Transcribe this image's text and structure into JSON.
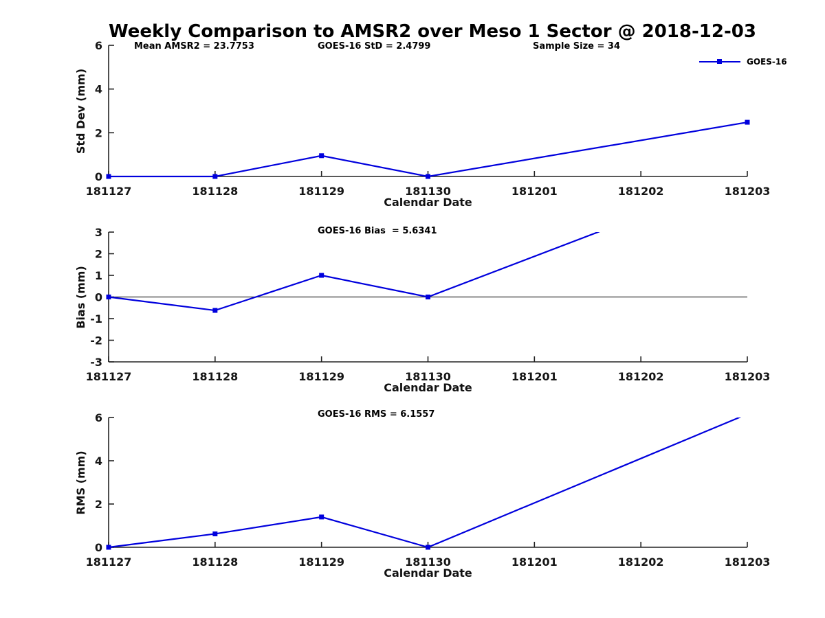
{
  "title": "Weekly Comparison to AMSR2 over Meso 1 Sector @ 2018-12-03",
  "legend": {
    "label": "GOES-16",
    "color": "#0000DD"
  },
  "colors": {
    "line": "#0000DD",
    "axis": "#222222",
    "tick_text": "#151515",
    "zero_line": "#333333",
    "background": "#ffffff"
  },
  "stats": {
    "mean_amsr2": "Mean AMSR2 = 23.7753",
    "goes16_std": "GOES-16 StD = 2.4799",
    "sample_size": "Sample Size = 34",
    "goes16_bias": "GOES-16 Bias  = 5.6341",
    "goes16_rms": "GOES-16 RMS = 6.1557"
  },
  "chart_data": [
    {
      "type": "line",
      "name": "std-dev-plot",
      "series_name": "GOES-16",
      "annotations": [
        "Mean AMSR2 = 23.7753",
        "GOES-16 StD = 2.4799",
        "Sample Size = 34"
      ],
      "xlabel": "Calendar Date",
      "ylabel": "Std Dev (mm)",
      "x_tick_labels": [
        "181127",
        "181128",
        "181129",
        "181130",
        "181201",
        "181202",
        "181203"
      ],
      "x_tick_positions": [
        0,
        1,
        2,
        3,
        4,
        5,
        6
      ],
      "xlim": [
        0,
        6
      ],
      "x": [
        0,
        1,
        2,
        3,
        6
      ],
      "values": [
        0,
        0,
        0.95,
        0,
        2.4799
      ],
      "ylim": [
        0,
        6
      ],
      "yticks": [
        0,
        2,
        4,
        6
      ],
      "zero_line": false,
      "grid": false,
      "legend_position": "top-right"
    },
    {
      "type": "line",
      "name": "bias-plot",
      "series_name": "GOES-16",
      "annotation": "GOES-16 Bias  = 5.6341",
      "xlabel": "Calendar Date",
      "ylabel": "Bias (mm)",
      "x_tick_labels": [
        "181127",
        "181128",
        "181129",
        "181130",
        "181201",
        "181202",
        "181203"
      ],
      "x_tick_positions": [
        0,
        1,
        2,
        3,
        4,
        5,
        6
      ],
      "xlim": [
        0,
        6
      ],
      "x": [
        0,
        1,
        2,
        3,
        6
      ],
      "values": [
        0,
        -0.62,
        1.0,
        0,
        5.6341
      ],
      "ylim": [
        -3,
        3
      ],
      "yticks": [
        -3,
        -2,
        -1,
        0,
        1,
        2,
        3
      ],
      "zero_line": true,
      "grid": false
    },
    {
      "type": "line",
      "name": "rms-plot",
      "series_name": "GOES-16",
      "annotation": "GOES-16 RMS = 6.1557",
      "xlabel": "Calendar Date",
      "ylabel": "RMS (mm)",
      "x_tick_labels": [
        "181127",
        "181128",
        "181129",
        "181130",
        "181201",
        "181202",
        "181203"
      ],
      "x_tick_positions": [
        0,
        1,
        2,
        3,
        4,
        5,
        6
      ],
      "xlim": [
        0,
        6
      ],
      "x": [
        0,
        1,
        2,
        3,
        6
      ],
      "values": [
        0,
        0.62,
        1.4,
        0,
        6.1557
      ],
      "ylim": [
        0,
        6
      ],
      "yticks": [
        0,
        2,
        4,
        6
      ],
      "zero_line": false,
      "grid": false
    }
  ]
}
